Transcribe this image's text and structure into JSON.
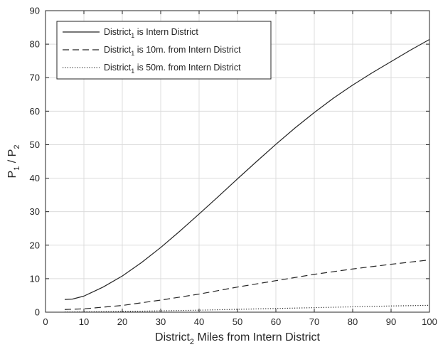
{
  "chart_data": {
    "type": "line",
    "xlabel": {
      "main": "District",
      "sub": "2",
      "rest": " Miles from Intern District"
    },
    "ylabel": {
      "p1_main": "P",
      "p1_sub": "1",
      "sep": " / ",
      "p2_main": "P",
      "p2_sub": "2"
    },
    "xlim": [
      0,
      100
    ],
    "ylim": [
      0,
      90
    ],
    "xticks": [
      0,
      10,
      20,
      30,
      40,
      50,
      60,
      70,
      80,
      90,
      100
    ],
    "yticks": [
      0,
      10,
      20,
      30,
      40,
      50,
      60,
      70,
      80,
      90
    ],
    "grid": true,
    "legend_position": "top-left",
    "series": [
      {
        "legend": {
          "main": "District",
          "sub": "1",
          "rest": " is Intern District"
        },
        "style": "solid",
        "color": "#262626",
        "x": [
          5,
          7,
          10,
          15,
          20,
          25,
          30,
          35,
          40,
          45,
          50,
          55,
          60,
          65,
          70,
          75,
          80,
          85,
          90,
          95,
          100
        ],
        "y": [
          3.8,
          3.9,
          4.8,
          7.5,
          10.8,
          14.8,
          19.3,
          24.2,
          29.3,
          34.5,
          39.8,
          45.0,
          50.1,
          55.0,
          59.6,
          63.9,
          67.8,
          71.4,
          74.8,
          78.2,
          81.4
        ]
      },
      {
        "legend": {
          "main": "District",
          "sub": "1",
          "rest": " is 10m. from Intern District"
        },
        "style": "dashed",
        "color": "#262626",
        "x": [
          5,
          10,
          20,
          30,
          40,
          50,
          60,
          70,
          80,
          90,
          100
        ],
        "y": [
          0.8,
          1.0,
          2.0,
          3.6,
          5.4,
          7.5,
          9.4,
          11.3,
          12.9,
          14.3,
          15.6
        ]
      },
      {
        "legend": {
          "main": "District",
          "sub": "1",
          "rest": " is 50m. from Intern District"
        },
        "style": "dotted",
        "color": "#262626",
        "x": [
          5,
          10,
          20,
          30,
          40,
          50,
          60,
          70,
          80,
          90,
          100
        ],
        "y": [
          0.05,
          0.1,
          0.2,
          0.4,
          0.6,
          0.85,
          1.1,
          1.35,
          1.6,
          1.85,
          2.05
        ]
      }
    ]
  }
}
